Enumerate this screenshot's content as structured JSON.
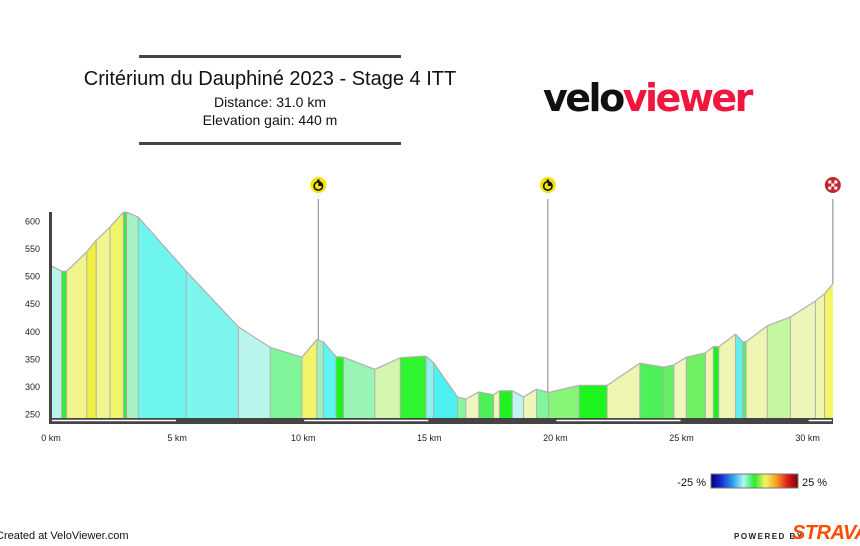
{
  "header": {
    "title": "Critérium du Dauphiné 2023 - Stage 4 ITT",
    "distance": "Distance: 31.0 km",
    "elevation_gain": "Elevation gain: 440 m"
  },
  "logo": {
    "part1": "velo",
    "part2": "viewer"
  },
  "footer": {
    "credit": "Created at VeloViewer.com",
    "powered_by": "POWERED BY",
    "strava": "STRAVA"
  },
  "legend": {
    "min_label": "-25 %",
    "max_label": "25 %"
  },
  "chart_data": {
    "type": "area",
    "title": "",
    "xlabel": "",
    "ylabel": "",
    "xlim": [
      0,
      31
    ],
    "ylim": [
      250,
      620
    ],
    "x_ticks": [
      0,
      5,
      10,
      15,
      20,
      25,
      30
    ],
    "x_tick_labels": [
      "0 km",
      "5 km",
      "10 km",
      "15 km",
      "20 km",
      "25 km",
      "30 km"
    ],
    "y_ticks": [
      250,
      300,
      350,
      400,
      450,
      500,
      550,
      600
    ],
    "y_tick_labels": [
      "250",
      "300",
      "350",
      "400",
      "450",
      "500",
      "550",
      "600"
    ],
    "grid": false,
    "distance_km": [
      0,
      0.42,
      0.62,
      1.42,
      1.79,
      2.34,
      2.87,
      3.0,
      3.46,
      5.36,
      7.43,
      8.69,
      9.95,
      10.54,
      10.8,
      11.3,
      11.6,
      12.84,
      13.85,
      14.87,
      15.17,
      16.12,
      16.45,
      16.96,
      17.55,
      17.78,
      18.29,
      18.74,
      19.25,
      19.73,
      20.94,
      22.05,
      23.35,
      24.29,
      24.7,
      25.19,
      25.95,
      26.26,
      26.48,
      27.14,
      27.43,
      27.56,
      28.4,
      29.32,
      30.31,
      30.67,
      31.0
    ],
    "elevation_m": [
      519,
      509,
      509,
      544,
      565,
      589,
      616,
      616,
      607,
      509,
      408,
      371,
      353,
      385,
      381,
      354,
      353,
      331,
      352,
      355,
      343,
      281,
      277,
      290,
      285,
      292,
      292,
      281,
      295,
      289,
      302,
      302,
      342,
      335,
      339,
      353,
      361,
      372,
      372,
      395,
      381,
      381,
      410,
      426,
      455,
      468,
      486
    ],
    "segment_colors": [
      "#b9f3ec",
      "#3be83b",
      "#f0f48c",
      "#f0f040",
      "#f2f58e",
      "#f0f46a",
      "#3be83b",
      "#a6f2c6",
      "#6ef5ee",
      "#7cf5ee",
      "#b9f5ec",
      "#80f59a",
      "#f2f56a",
      "#9cf2c0",
      "#5ff5f0",
      "#1af51a",
      "#98f5b5",
      "#d4f5ae",
      "#2ef52e",
      "#90f0f0",
      "#4cf0f0",
      "#88f59a",
      "#f0f5c0",
      "#4ef05a",
      "#f2f5b8",
      "#22f022",
      "#bff5ec",
      "#eef5b8",
      "#80f59a",
      "#86f578",
      "#1ef51e",
      "#eef5b0",
      "#4ef05a",
      "#66f060",
      "#f0f5c0",
      "#70f064",
      "#f0f5b0",
      "#1af01a",
      "#eef5b0",
      "#66eeee",
      "#55f060",
      "#eef5b0",
      "#c4f5a0",
      "#eef5b8",
      "#f0f5b0",
      "#f2f560"
    ],
    "markers": [
      {
        "type": "intermediate-time-check",
        "km": 10.6,
        "color": "#f5e400"
      },
      {
        "type": "intermediate-time-check",
        "km": 19.7,
        "color": "#f5e400"
      },
      {
        "type": "finish",
        "km": 31.0,
        "color": "#c0272d"
      }
    ],
    "gradient_scale": {
      "min": -25,
      "max": 25,
      "colors": [
        "#000080",
        "#1a2fd0",
        "#2aa0f0",
        "#b0f5f5",
        "#2ee82e",
        "#f5f560",
        "#f5a020",
        "#e02020",
        "#800000"
      ]
    }
  }
}
